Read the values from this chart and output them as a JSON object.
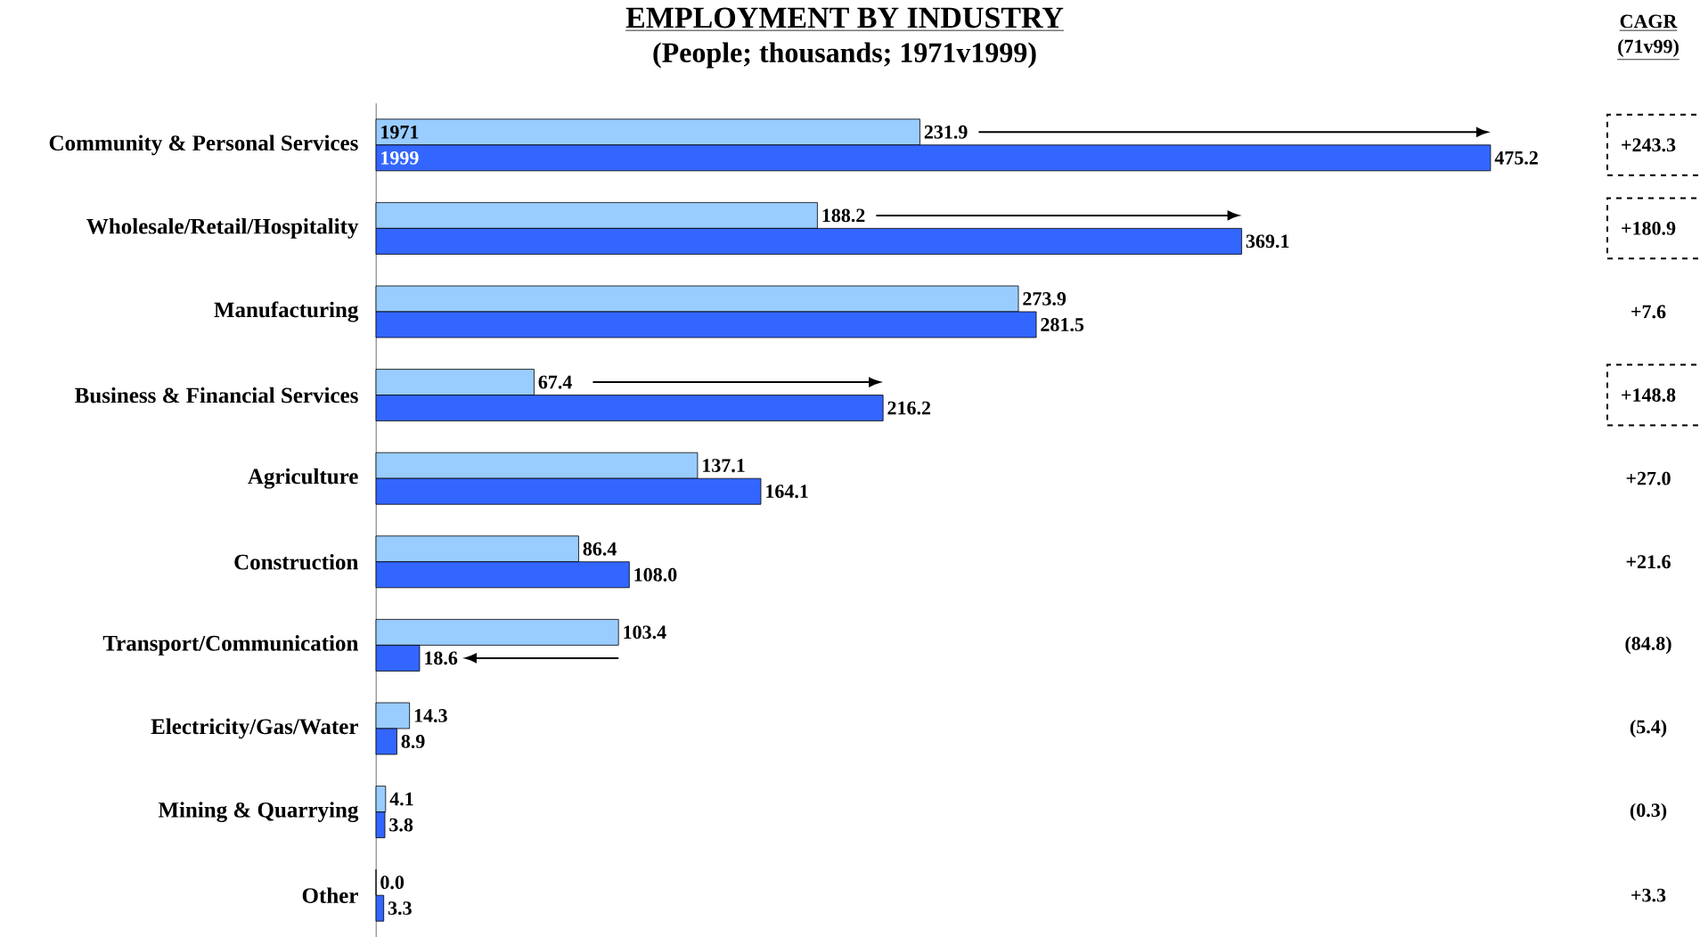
{
  "chart_data": {
    "type": "bar",
    "orientation": "horizontal",
    "title": "EMPLOYMENT BY INDUSTRY",
    "subtitle": "(People; thousands; 1971v1999)",
    "categories": [
      "Community & Personal Services",
      "Wholesale/Retail/Hospitality",
      "Manufacturing",
      "Business & Financial Services",
      "Agriculture",
      "Construction",
      "Transport/Communication",
      "Electricity/Gas/Water",
      "Mining & Quarrying",
      "Other"
    ],
    "series": [
      {
        "name": "1971",
        "color": "#99ccff",
        "values": [
          231.9,
          188.2,
          273.9,
          67.4,
          137.1,
          86.4,
          103.4,
          14.3,
          4.1,
          0
        ],
        "value_labels": [
          "231.9",
          "188.2",
          "273.9",
          "67.4",
          "137.1",
          "86.4",
          "103.4",
          "14.3",
          "4.1",
          "0.0"
        ]
      },
      {
        "name": "1999",
        "color": "#3366ff",
        "values": [
          475.2,
          369.1,
          281.5,
          216.2,
          164.1,
          108,
          18.6,
          8.9,
          3.8,
          3.3
        ],
        "value_labels": [
          "475.2",
          "369.1",
          "281.5",
          "216.2",
          "164.1",
          "108.0",
          "18.6",
          "8.9",
          "3.8",
          "3.3"
        ]
      }
    ],
    "annotations": [
      "CAGR",
      "(71v99)",
      "+243.3",
      "+180.9",
      "+7.6",
      "+148.8",
      "+27.0",
      "+21.6",
      "(84.8)",
      "(5.4)",
      "(0.3)",
      "+3.3"
    ]
  }
}
